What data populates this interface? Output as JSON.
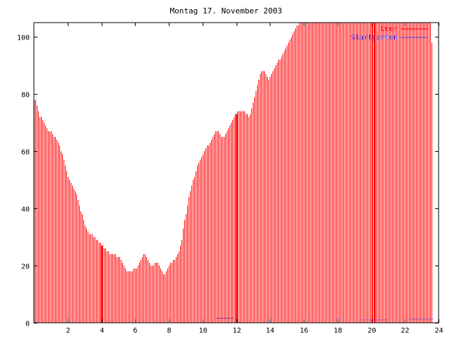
{
  "chart_data": {
    "type": "bar",
    "title": "Montag 17. November 2003",
    "xlabel": "",
    "ylabel": "",
    "xlim": [
      0,
      24
    ],
    "ylim": [
      0,
      105
    ],
    "x_ticks": [
      2,
      4,
      6,
      8,
      10,
      12,
      14,
      16,
      18,
      20,
      22,
      24
    ],
    "y_ticks": [
      0,
      20,
      40,
      60,
      80,
      100
    ],
    "grid": false,
    "legend_position": "top-right",
    "colors": {
      "user": "#ff0000",
      "startgarten": "#4444ff",
      "user_edge": "#880000"
    },
    "series": [
      {
        "name": "User",
        "step_minutes": 5,
        "values": [
          78,
          78,
          76,
          74,
          72,
          72,
          71,
          70,
          69,
          68,
          67,
          67,
          67,
          66,
          65,
          65,
          64,
          63,
          62,
          60,
          59,
          57,
          55,
          53,
          51,
          50,
          49,
          48,
          47,
          46,
          45,
          43,
          41,
          39,
          38,
          36,
          34,
          33,
          32,
          31,
          31,
          31,
          30,
          30,
          29,
          29,
          28,
          28,
          27,
          27,
          26,
          26,
          25,
          25,
          24,
          24,
          24,
          24,
          24,
          23,
          23,
          23,
          22,
          21,
          20,
          19,
          18,
          18,
          18,
          18,
          18,
          19,
          19,
          19,
          20,
          21,
          22,
          23,
          24,
          24,
          23,
          22,
          21,
          20,
          20,
          20,
          21,
          21,
          21,
          20,
          19,
          18,
          17,
          17,
          18,
          19,
          20,
          21,
          21,
          22,
          22,
          23,
          24,
          25,
          27,
          29,
          33,
          36,
          38,
          41,
          44,
          46,
          48,
          50,
          51,
          53,
          55,
          56,
          57,
          58,
          59,
          60,
          61,
          62,
          62,
          63,
          64,
          65,
          66,
          67,
          67,
          67,
          66,
          65,
          65,
          65,
          66,
          67,
          68,
          69,
          70,
          71,
          72,
          73,
          73,
          74,
          74,
          74,
          74,
          74,
          74,
          73,
          73,
          72,
          73,
          75,
          77,
          79,
          81,
          83,
          85,
          87,
          88,
          88,
          88,
          87,
          86,
          85,
          86,
          87,
          88,
          89,
          90,
          91,
          92,
          92,
          93,
          94,
          95,
          96,
          97,
          98,
          99,
          100,
          101,
          102,
          103,
          104,
          104,
          105,
          105,
          105,
          105,
          105,
          105,
          105,
          105,
          105,
          105,
          105,
          105,
          105,
          105,
          105,
          105,
          105,
          105,
          105,
          105,
          105,
          105,
          105,
          105,
          105,
          105,
          105,
          105,
          105,
          105,
          105,
          105,
          105,
          105,
          105,
          105,
          105,
          105,
          105,
          105,
          105,
          105,
          105,
          105,
          105,
          105,
          105,
          105,
          105,
          105,
          105,
          105,
          105,
          105,
          105,
          105,
          105,
          105,
          105,
          105,
          105,
          105,
          105,
          105,
          105,
          105,
          105,
          105,
          105,
          105,
          105,
          105,
          105,
          105,
          105,
          105,
          105,
          105,
          105,
          105,
          105,
          105,
          105,
          105,
          105,
          105,
          105,
          105,
          105,
          105,
          105,
          105,
          105,
          105,
          98
        ]
      },
      {
        "name": "Startgarten",
        "segments": [
          [
            10.8,
            11.9,
            1.6
          ],
          [
            13.9,
            14.1,
            0.6
          ],
          [
            18.0,
            18.4,
            1.5
          ],
          [
            19.5,
            21.0,
            1.0
          ],
          [
            22.3,
            23.7,
            1.3
          ]
        ]
      }
    ],
    "highlight_hours": [
      4,
      12,
      20.2
    ]
  }
}
